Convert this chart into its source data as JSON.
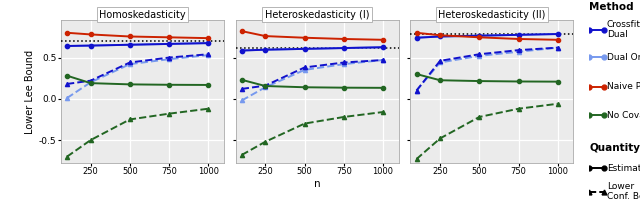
{
  "panels": [
    "Homoskedasticity",
    "Heteroskedasticity (I)",
    "Heteroskedasticity (II)"
  ],
  "x": [
    100,
    250,
    500,
    750,
    1000
  ],
  "hline": [
    0.7,
    0.62,
    0.78
  ],
  "crossfit_dual_est": [
    [
      0.64,
      0.645,
      0.655,
      0.665,
      0.675
    ],
    [
      0.585,
      0.595,
      0.605,
      0.615,
      0.625
    ],
    [
      0.74,
      0.755,
      0.765,
      0.775,
      0.785
    ]
  ],
  "crossfit_dual_lb": [
    [
      0.18,
      0.22,
      0.44,
      0.5,
      0.54
    ],
    [
      0.12,
      0.16,
      0.38,
      0.44,
      0.47
    ],
    [
      0.1,
      0.46,
      0.54,
      0.59,
      0.62
    ]
  ],
  "dual_oracle_lb": [
    [
      0.01,
      0.2,
      0.42,
      0.48,
      0.53
    ],
    [
      -0.02,
      0.14,
      0.35,
      0.42,
      0.47
    ],
    [
      0.1,
      0.44,
      0.52,
      0.57,
      0.62
    ]
  ],
  "naive_plugin_est": [
    [
      0.8,
      0.78,
      0.755,
      0.745,
      0.735
    ],
    [
      0.82,
      0.76,
      0.74,
      0.725,
      0.715
    ],
    [
      0.8,
      0.77,
      0.745,
      0.725,
      0.715
    ]
  ],
  "no_cov_est": [
    [
      0.28,
      0.19,
      0.175,
      0.17,
      0.168
    ],
    [
      0.23,
      0.155,
      0.14,
      0.135,
      0.133
    ],
    [
      0.3,
      0.225,
      0.215,
      0.21,
      0.208
    ]
  ],
  "no_cov_lb": [
    [
      -0.7,
      -0.5,
      -0.25,
      -0.18,
      -0.12
    ],
    [
      -0.68,
      -0.52,
      -0.3,
      -0.22,
      -0.16
    ],
    [
      -0.73,
      -0.48,
      -0.22,
      -0.12,
      -0.06
    ]
  ],
  "colors": {
    "crossfit_dual": "#1111cc",
    "dual_oracle": "#7799ee",
    "naive_plugin": "#cc2200",
    "no_cov": "#226622"
  },
  "ylabel": "Lower Lee Bound",
  "xlabel": "n",
  "ylim": [
    -0.78,
    0.95
  ],
  "yticks": [
    -0.5,
    0.0,
    0.5
  ],
  "bg_color": "#ebebeb",
  "grid_color": "white"
}
